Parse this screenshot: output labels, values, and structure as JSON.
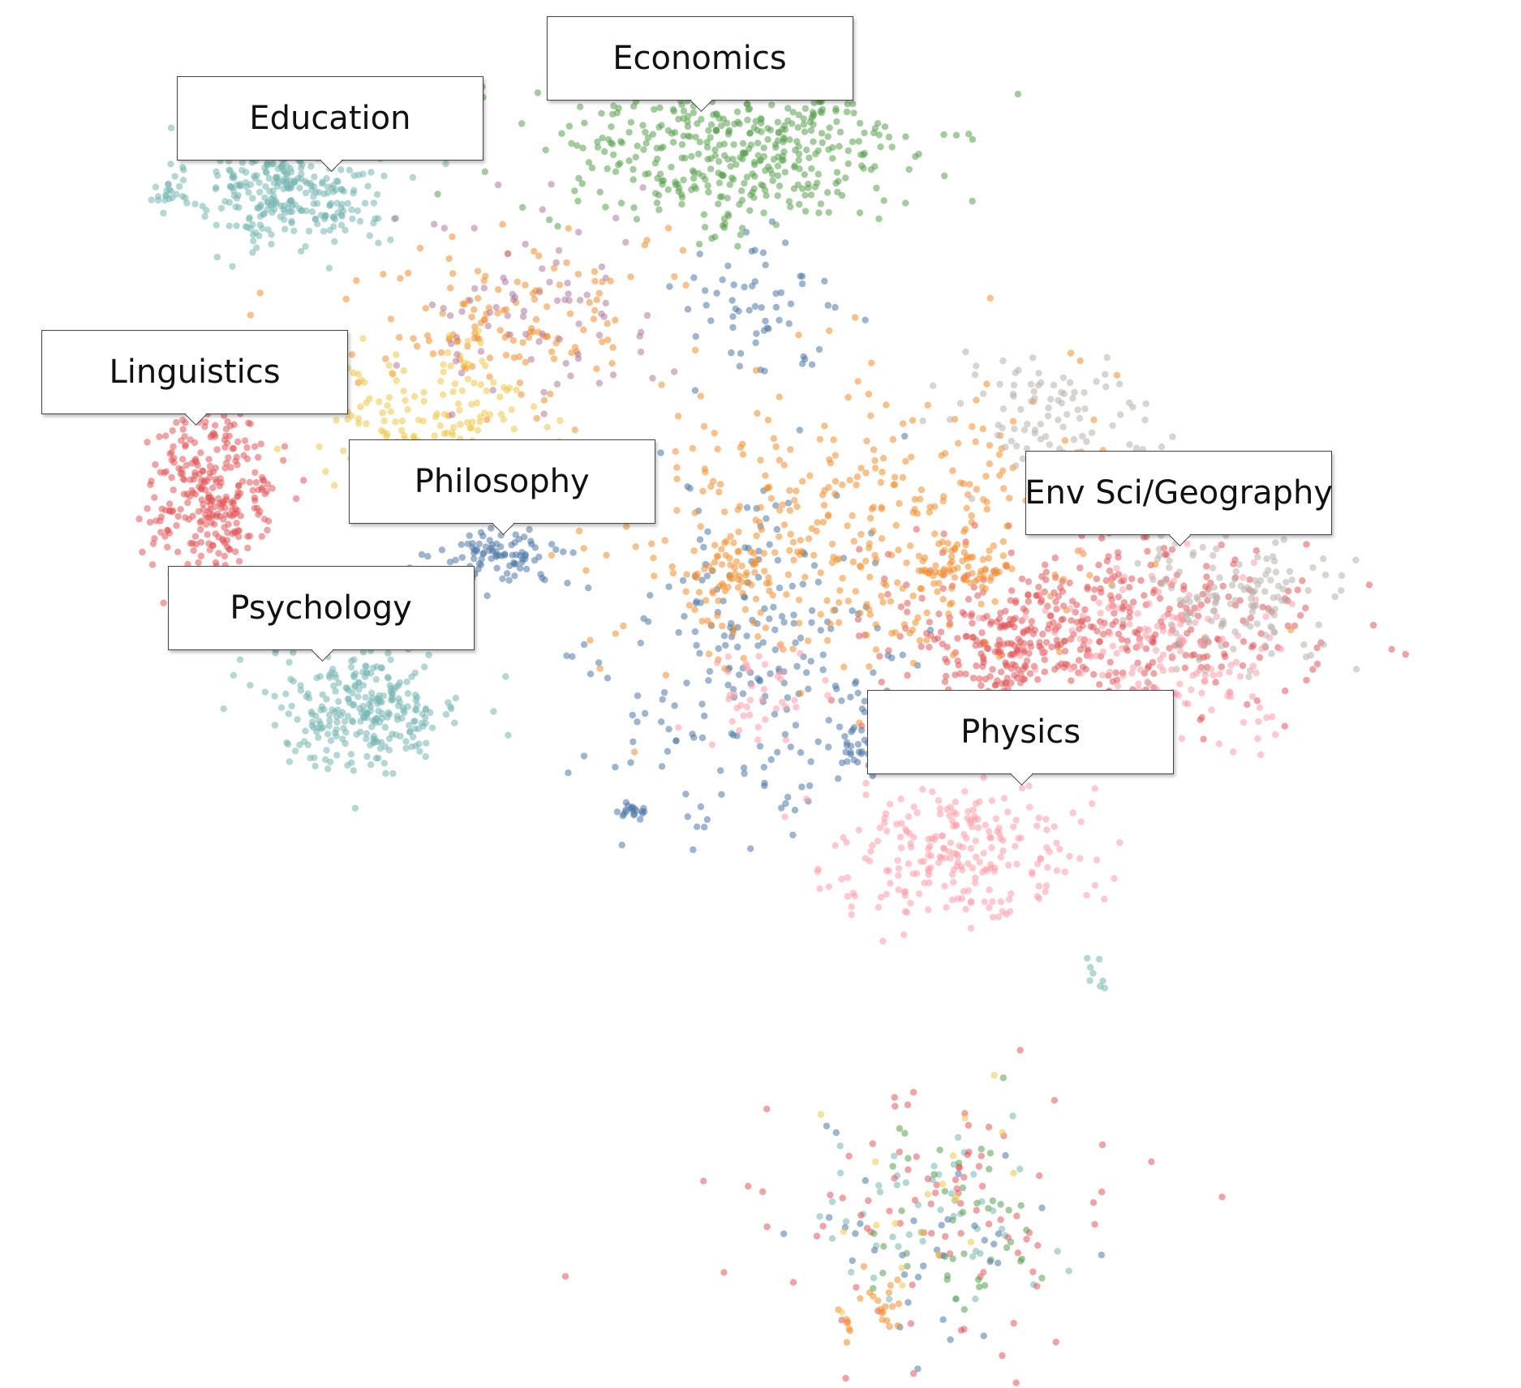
{
  "chart_data": {
    "type": "scatter",
    "title": "",
    "xlabel": "",
    "ylabel": "",
    "grid": false,
    "axes_visible": false,
    "xlim": [
      0,
      100
    ],
    "ylim": [
      0,
      100
    ],
    "point_style": {
      "opacity": 0.55
    },
    "series": [
      {
        "color": "#76b7b2",
        "clusters": [
          {
            "cx": 19,
            "cy": 86.5,
            "sx": 3.2,
            "sy": 2.2,
            "n": 320
          },
          {
            "cx": 24,
            "cy": 49,
            "sx": 3.2,
            "sy": 2.2,
            "n": 280
          },
          {
            "cx": 11,
            "cy": 86,
            "sx": 0.6,
            "sy": 0.4,
            "n": 12
          },
          {
            "cx": 72,
            "cy": 30,
            "sx": 0.4,
            "sy": 0.6,
            "n": 8
          },
          {
            "cx": 61,
            "cy": 12,
            "sx": 4,
            "sy": 3,
            "n": 50
          }
        ]
      },
      {
        "color": "#e15759",
        "clusters": [
          {
            "cx": 14,
            "cy": 64.5,
            "sx": 2.1,
            "sy": 3.2,
            "n": 300
          },
          {
            "cx": 72,
            "cy": 55,
            "sx": 7,
            "sy": 3.2,
            "n": 420
          },
          {
            "cx": 66,
            "cy": 53,
            "sx": 2,
            "sy": 1.5,
            "n": 90
          },
          {
            "cx": 62,
            "cy": 12,
            "sx": 6,
            "sy": 4.5,
            "n": 90
          }
        ]
      },
      {
        "color": "#59a14f",
        "clusters": [
          {
            "cx": 48,
            "cy": 89,
            "sx": 6,
            "sy": 3,
            "n": 420
          },
          {
            "cx": 55,
            "cy": 93.5,
            "sx": 0.7,
            "sy": 0.7,
            "n": 25
          },
          {
            "cx": 62,
            "cy": 12,
            "sx": 4,
            "sy": 4,
            "n": 45
          }
        ]
      },
      {
        "color": "#4e79a7",
        "clusters": [
          {
            "cx": 33,
            "cy": 60,
            "sx": 2,
            "sy": 0.9,
            "n": 90
          },
          {
            "cx": 50,
            "cy": 52,
            "sx": 5,
            "sy": 6,
            "n": 220
          },
          {
            "cx": 49,
            "cy": 78,
            "sx": 2.5,
            "sy": 2.5,
            "n": 60
          },
          {
            "cx": 41.5,
            "cy": 41.5,
            "sx": 0.6,
            "sy": 0.4,
            "n": 20
          },
          {
            "cx": 57,
            "cy": 47,
            "sx": 1.2,
            "sy": 1.6,
            "n": 40
          },
          {
            "cx": 62,
            "cy": 11,
            "sx": 4,
            "sy": 4,
            "n": 35
          }
        ]
      },
      {
        "color": "#f28e2b",
        "clusters": [
          {
            "cx": 33,
            "cy": 77,
            "sx": 5,
            "sy": 3.2,
            "n": 140
          },
          {
            "cx": 55,
            "cy": 62,
            "sx": 8,
            "sy": 5.5,
            "n": 380
          },
          {
            "cx": 63,
            "cy": 59,
            "sx": 1.6,
            "sy": 1.2,
            "n": 60
          },
          {
            "cx": 48.5,
            "cy": 58.5,
            "sx": 1.5,
            "sy": 1,
            "n": 40
          },
          {
            "cx": 57,
            "cy": 6,
            "sx": 1.2,
            "sy": 1.2,
            "n": 25
          }
        ]
      },
      {
        "color": "#edc948",
        "clusters": [
          {
            "cx": 28.5,
            "cy": 70,
            "sx": 3.5,
            "sy": 2.5,
            "n": 150
          },
          {
            "cx": 61,
            "cy": 12,
            "sx": 4,
            "sy": 4,
            "n": 20
          }
        ]
      },
      {
        "color": "#ff9da7",
        "clusters": [
          {
            "cx": 77,
            "cy": 53,
            "sx": 4.5,
            "sy": 3,
            "n": 160
          },
          {
            "cx": 63,
            "cy": 39,
            "sx": 4,
            "sy": 2.5,
            "n": 240
          },
          {
            "cx": 50,
            "cy": 50,
            "sx": 2,
            "sy": 2,
            "n": 40
          }
        ]
      },
      {
        "color": "#bab0ac",
        "clusters": [
          {
            "cx": 70,
            "cy": 70,
            "sx": 4,
            "sy": 2.2,
            "n": 100
          },
          {
            "cx": 81,
            "cy": 57,
            "sx": 3.5,
            "sy": 2.5,
            "n": 140
          }
        ]
      },
      {
        "color": "#b07aa1",
        "clusters": [
          {
            "cx": 36,
            "cy": 78,
            "sx": 5,
            "sy": 4,
            "n": 80
          }
        ]
      }
    ],
    "annotations": [
      {
        "text": "Education",
        "x": 21.7,
        "y": 87.8
      },
      {
        "text": "Economics",
        "x": 46,
        "y": 92.1
      },
      {
        "text": "Linguistics",
        "x": 12.8,
        "y": 69.5
      },
      {
        "text": "Philosophy",
        "x": 33,
        "y": 61.6
      },
      {
        "text": "Env Sci/Geography",
        "x": 77.5,
        "y": 60.8
      },
      {
        "text": "Psychology",
        "x": 21.1,
        "y": 52.5
      },
      {
        "text": "Physics",
        "x": 67.1,
        "y": 43.6
      }
    ]
  }
}
